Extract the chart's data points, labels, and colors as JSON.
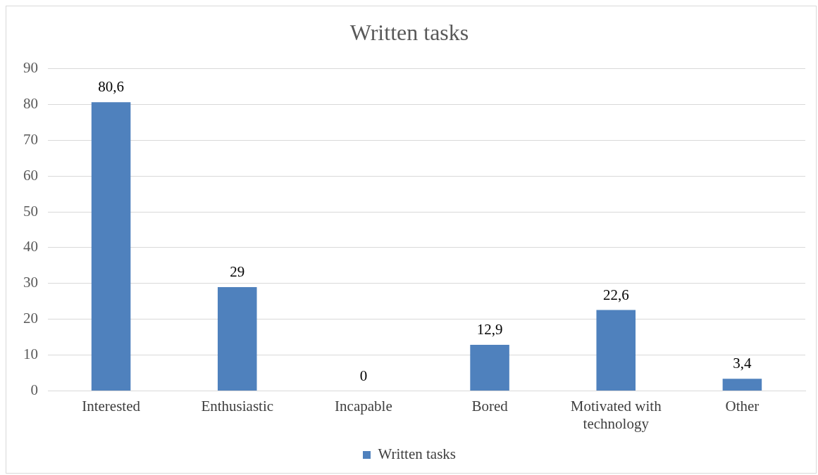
{
  "chart_data": {
    "type": "bar",
    "title": "Written tasks",
    "categories": [
      "Interested",
      "Enthusiastic",
      "Incapable",
      "Bored",
      "Motivated with technology",
      "Other"
    ],
    "series": [
      {
        "name": "Written tasks",
        "color": "#4f81bd",
        "values": [
          80.6,
          29,
          0,
          12.9,
          22.6,
          3.4
        ],
        "value_labels": [
          "80,6",
          "29",
          "0",
          "12,9",
          "22,6",
          "3,4"
        ]
      }
    ],
    "ylim": [
      0,
      90
    ],
    "yticks": [
      0,
      10,
      20,
      30,
      40,
      50,
      60,
      70,
      80,
      90
    ],
    "grid": "y",
    "legend": "bottom"
  }
}
